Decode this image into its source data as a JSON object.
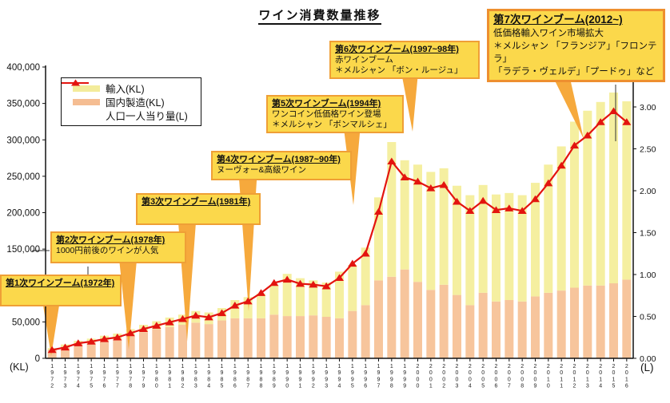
{
  "title": "ワイン消費数量推移",
  "legend": {
    "items": [
      {
        "label": "輸入(KL)",
        "color": "#f3ec9b"
      },
      {
        "label": "国内製造(KL)",
        "color": "#f5bd92"
      },
      {
        "label": "人口一人当り量(L)",
        "color": "#e3140f"
      }
    ]
  },
  "axis_units": {
    "left": "(KL)",
    "right": "(L)"
  },
  "callouts": [
    {
      "title": "第1次ワインブーム(1972年)",
      "body": []
    },
    {
      "title": "第2次ワインブーム(1978年)",
      "body": [
        "1000円前後のワインが人気"
      ]
    },
    {
      "title": "第3次ワインブーム(1981年)",
      "body": []
    },
    {
      "title": "第4次ワインブーム(1987~90年)",
      "body": [
        "ヌーヴォー&高級ワイン"
      ]
    },
    {
      "title": "第5次ワインブーム(1994年)",
      "body": [
        "ワンコイン低価格ワイン登場",
        "＊メルシャン 「ボンマルシェ」"
      ]
    },
    {
      "title": "第6次ワインブーム(1997~98年)",
      "body": [
        "赤ワインブーム",
        "＊メルシャン 「ボン・ルージュ」"
      ]
    },
    {
      "title": "第7次ワインブーム(2012~)",
      "body": [
        "低価格輸入ワイン市場拡大",
        "＊メルシャン 「フランジア」「フロンテラ」",
        "「ラデラ・ヴェルデ」「プードゥ」など"
      ]
    }
  ],
  "chart_data": {
    "type": "bar",
    "subtype": "stacked-bars-with-line",
    "title": "ワイン消費数量推移",
    "grid": false,
    "legend_position": "top-left",
    "categories": [
      "1972",
      "1973",
      "1974",
      "1975",
      "1976",
      "1977",
      "1978",
      "1979",
      "1980",
      "1981",
      "1982",
      "1983",
      "1984",
      "1985",
      "1986",
      "1987",
      "1988",
      "1989",
      "1990",
      "1991",
      "1992",
      "1993",
      "1994",
      "1995",
      "1996",
      "1997",
      "1998",
      "1999",
      "2000",
      "2001",
      "2002",
      "2003",
      "2004",
      "2005",
      "2006",
      "2007",
      "2008",
      "2009",
      "2010",
      "2011",
      "2012",
      "2013",
      "2014",
      "2015",
      "2016"
    ],
    "left_axis": {
      "unit": "(KL)",
      "min": 0,
      "max": 400000,
      "step": 50000
    },
    "right_axis": {
      "unit": "(L)",
      "min": 0,
      "max": 3.0,
      "step": 0.5
    },
    "stack_order_bottom_to_top": [
      "国内製造(KL)",
      "輸入(KL)"
    ],
    "series": [
      {
        "name": "輸入(KL)",
        "type": "bar",
        "axis": "left",
        "color": "#f5efa0",
        "values": [
          2000,
          3000,
          4000,
          5000,
          6000,
          7000,
          8000,
          10000,
          11000,
          13000,
          14000,
          16000,
          16000,
          17000,
          25000,
          29000,
          34000,
          41000,
          58000,
          52000,
          48000,
          47000,
          64000,
          63000,
          79000,
          114000,
          185000,
          150000,
          161000,
          162000,
          160000,
          150000,
          151000,
          148000,
          147000,
          147000,
          146000,
          156000,
          176000,
          198000,
          228000,
          240000,
          252000,
          262000,
          245000
        ]
      },
      {
        "name": "国内製造(KL)",
        "type": "bar",
        "axis": "left",
        "color": "#f7c59c",
        "values": [
          12000,
          16000,
          20000,
          22000,
          25000,
          27000,
          32000,
          36000,
          40000,
          43000,
          46000,
          49000,
          47000,
          52000,
          55000,
          55000,
          55000,
          60000,
          58000,
          58000,
          59000,
          57000,
          55000,
          65000,
          73000,
          107000,
          112000,
          122000,
          105000,
          94000,
          101000,
          87000,
          73000,
          90000,
          78000,
          80000,
          78000,
          85000,
          90000,
          93000,
          97000,
          100000,
          100000,
          103000,
          108000
        ]
      },
      {
        "name": "人口一人当り量(L)",
        "type": "line",
        "axis": "right",
        "color": "#e3140f",
        "marker": "triangle",
        "values": [
          0.1,
          0.13,
          0.18,
          0.2,
          0.23,
          0.25,
          0.3,
          0.35,
          0.39,
          0.43,
          0.47,
          0.51,
          0.49,
          0.54,
          0.63,
          0.68,
          0.78,
          0.9,
          0.94,
          0.89,
          0.88,
          0.86,
          0.96,
          1.13,
          1.25,
          1.75,
          2.35,
          2.16,
          2.11,
          2.03,
          2.07,
          1.87,
          1.76,
          1.88,
          1.77,
          1.79,
          1.76,
          1.9,
          2.09,
          2.3,
          2.54,
          2.66,
          2.82,
          2.95,
          2.82
        ]
      }
    ]
  }
}
